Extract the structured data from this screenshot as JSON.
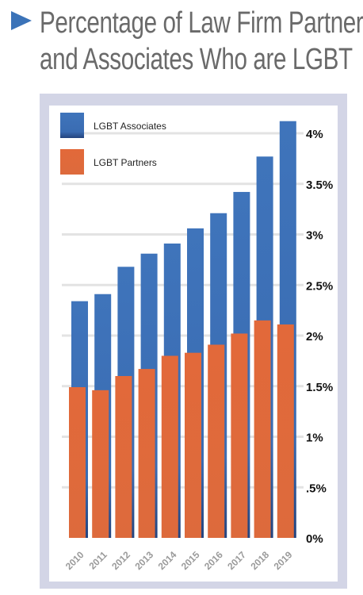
{
  "title": {
    "line1": "Percentage of Law Firm Partners",
    "line2": "and Associates Who are LGBT"
  },
  "colors": {
    "associates": "#3b6fb6",
    "partners": "#e0693a",
    "frame": "#d3d5e6",
    "title": "#6a6a6a",
    "arrow": "#3b73b8"
  },
  "chart_data": {
    "type": "bar",
    "categories": [
      "2010",
      "2011",
      "2012",
      "2013",
      "2014",
      "2015",
      "2016",
      "2017",
      "2018",
      "2019"
    ],
    "series": [
      {
        "name": "LGBT Associates",
        "values": [
          2.34,
          2.41,
          2.68,
          2.81,
          2.91,
          3.06,
          3.21,
          3.42,
          3.77,
          4.12
        ]
      },
      {
        "name": "LGBT Partners",
        "values": [
          1.49,
          1.46,
          1.6,
          1.67,
          1.8,
          1.83,
          1.91,
          2.02,
          2.15,
          2.11
        ]
      }
    ],
    "ytick_labels": [
      "0%",
      ".5%",
      "1%",
      "1.5%",
      "2%",
      "2.5%",
      "3%",
      "3.5%",
      "4%"
    ],
    "ytick_values": [
      0,
      0.5,
      1,
      1.5,
      2,
      2.5,
      3,
      3.5,
      4
    ],
    "ylim": [
      0,
      4.2
    ],
    "grid": true,
    "legend_position": "top-left",
    "bars": "overlapping"
  }
}
